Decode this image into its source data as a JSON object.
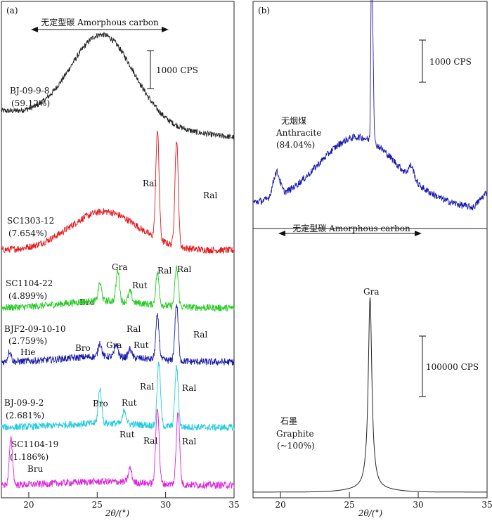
{
  "chart_data": [
    {
      "panel": "(a)",
      "type": "line",
      "xlabel": "2θ/(°)",
      "xlim": [
        18,
        35
      ],
      "xticks": [
        20,
        25,
        30,
        35
      ],
      "amorphous_label": "无定型碳 Amorphous carbon",
      "scale_bar": "1000 CPS",
      "series": [
        {
          "name": "BJ-09-9-8",
          "percent": "(59.12%)",
          "color": "#222222",
          "peaks": [
            {
              "label": "",
              "x": 25.5,
              "h": 1.0
            }
          ],
          "hump": {
            "center": 25.5,
            "width": 2.5,
            "height": 125
          }
        },
        {
          "name": "SC1303-12",
          "percent": "(7.654%)",
          "color": "#e41a1c",
          "peaks": [
            {
              "label": "Ral",
              "x": 29.4,
              "h": 155
            },
            {
              "label": "Ral",
              "x": 30.8,
              "h": 150
            }
          ],
          "hump": {
            "center": 25.5,
            "width": 2.5,
            "height": 55
          }
        },
        {
          "name": "SC1104-22",
          "percent": "(4.899%)",
          "color": "#22cc22",
          "peaks": [
            {
              "label": "Bro",
              "x": 25.2,
              "h": 25
            },
            {
              "label": "Gra",
              "x": 26.5,
              "h": 45
            },
            {
              "label": "Rut",
              "x": 27.4,
              "h": 15
            },
            {
              "label": "Ral",
              "x": 29.4,
              "h": 45
            },
            {
              "label": "Ral",
              "x": 30.8,
              "h": 55
            }
          ],
          "hump": {
            "center": 25.5,
            "width": 3,
            "height": 10
          }
        },
        {
          "name": "BJF2-09-10-10",
          "percent": "(2.759%)",
          "color": "#1a1aaa",
          "peaks": [
            {
              "label": "Hie",
              "x": 18.6,
              "h": 15
            },
            {
              "label": "Bro",
              "x": 25.2,
              "h": 20
            },
            {
              "label": "Gra",
              "x": 26.4,
              "h": 18
            },
            {
              "label": "Rut",
              "x": 27.4,
              "h": 12
            },
            {
              "label": "Ral",
              "x": 29.4,
              "h": 62
            },
            {
              "label": "Ral",
              "x": 30.8,
              "h": 80
            }
          ],
          "hump": {
            "center": 25.5,
            "width": 3,
            "height": 8
          }
        },
        {
          "name": "BJ-09-9-2",
          "percent": "(2.681%)",
          "color": "#22ccdd",
          "peaks": [
            {
              "label": "Bro",
              "x": 25.2,
              "h": 50
            },
            {
              "label": "Rut",
              "x": 27.0,
              "h": 20
            },
            {
              "label": "Ral",
              "x": 29.5,
              "h": 90
            },
            {
              "label": "Ral",
              "x": 30.8,
              "h": 85
            }
          ],
          "hump": {
            "center": 25.5,
            "width": 3,
            "height": 6
          }
        },
        {
          "name": "SC1104-19",
          "percent": "(1.186%)",
          "color": "#dd22dd",
          "peaks": [
            {
              "label": "Bru",
              "x": 18.7,
              "h": 65
            },
            {
              "label": "Rut",
              "x": 27.4,
              "h": 20
            },
            {
              "label": "Ral",
              "x": 29.4,
              "h": 110
            },
            {
              "label": "Ral",
              "x": 30.9,
              "h": 105
            }
          ],
          "hump": {
            "center": 25.5,
            "width": 3,
            "height": 5
          }
        }
      ]
    },
    {
      "panel": "(b)",
      "type": "line",
      "xlabel": "2θ/(°)",
      "xlim": [
        18,
        35
      ],
      "xticks": [
        20,
        25,
        30,
        35
      ],
      "top": {
        "name_cn": "无烟煤",
        "name_en": "Anthracite",
        "percent": "(84.04%)",
        "color": "#1a1aaa",
        "scale_bar": "1000 CPS",
        "amorphous_label": "无定型碳 Amorphous carbon"
      },
      "bottom": {
        "name_cn": "石墨",
        "name_en": "Graphite",
        "percent": "(~100%)",
        "color": "#222222",
        "scale_bar": "100000 CPS",
        "peak_label": "Gra",
        "peak_x": 26.5
      }
    }
  ]
}
